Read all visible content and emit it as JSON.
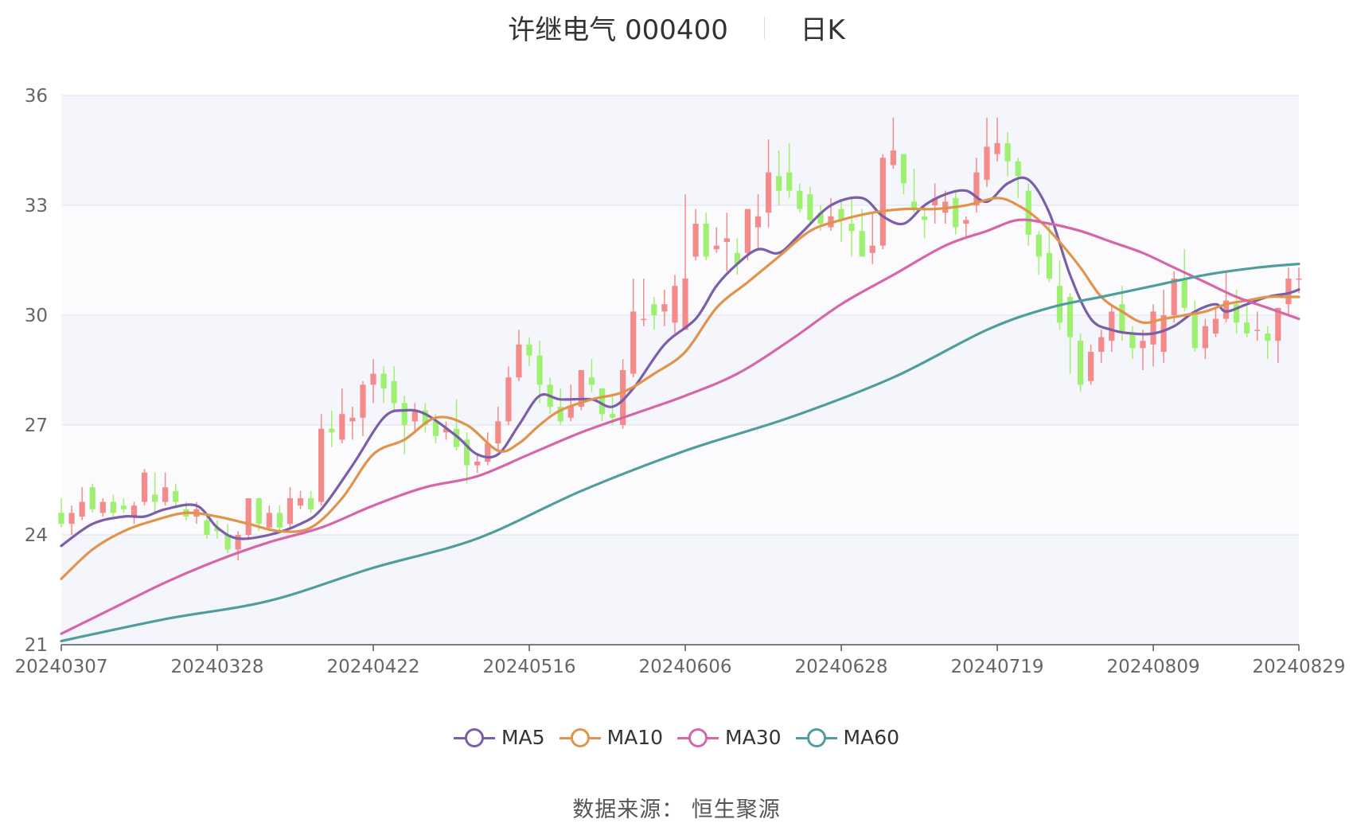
{
  "title": {
    "stock": "许继电气 000400",
    "period": "日K"
  },
  "source": "数据来源： 恒生聚源",
  "chart_data": {
    "type": "candlestick",
    "ylim": [
      21,
      36
    ],
    "yticks": [
      21,
      24,
      27,
      30,
      33,
      36
    ],
    "x_dates": [
      "20240307",
      "20240328",
      "20240422",
      "20240516",
      "20240606",
      "20240628",
      "20240719",
      "20240809",
      "20240829"
    ],
    "x_tick_index": [
      0,
      15,
      30,
      45,
      60,
      75,
      90,
      105,
      119
    ],
    "up_color": "#f48a8a",
    "down_color": "#9ef06f",
    "band_colors": [
      "#f5f6fb",
      "#fbfbfe"
    ],
    "candles": [
      [
        24.6,
        24.3,
        25.0,
        24.2
      ],
      [
        24.3,
        24.6,
        24.8,
        24.0
      ],
      [
        24.5,
        24.9,
        25.3,
        24.4
      ],
      [
        25.3,
        24.7,
        25.4,
        24.6
      ],
      [
        24.6,
        24.9,
        25.0,
        24.5
      ],
      [
        24.9,
        24.6,
        25.1,
        24.5
      ],
      [
        24.8,
        24.7,
        25.0,
        24.6
      ],
      [
        24.5,
        24.8,
        24.9,
        24.3
      ],
      [
        24.9,
        25.7,
        25.8,
        24.8
      ],
      [
        25.1,
        24.9,
        25.7,
        24.6
      ],
      [
        24.9,
        25.3,
        25.7,
        24.8
      ],
      [
        25.2,
        24.9,
        25.4,
        24.8
      ],
      [
        24.7,
        24.5,
        24.9,
        24.4
      ],
      [
        24.5,
        24.7,
        24.9,
        24.3
      ],
      [
        24.4,
        24.0,
        24.6,
        23.9
      ],
      [
        24.2,
        24.1,
        24.4,
        23.9
      ],
      [
        24.0,
        23.6,
        24.3,
        23.5
      ],
      [
        23.6,
        24.0,
        24.1,
        23.3
      ],
      [
        24.0,
        25.0,
        25.0,
        23.9
      ],
      [
        25.0,
        24.3,
        25.0,
        24.1
      ],
      [
        24.2,
        24.6,
        24.8,
        24.1
      ],
      [
        24.6,
        24.2,
        24.8,
        24.1
      ],
      [
        24.3,
        25.0,
        25.3,
        24.2
      ],
      [
        24.8,
        25.0,
        25.2,
        24.7
      ],
      [
        25.0,
        24.7,
        25.2,
        24.6
      ],
      [
        24.9,
        26.9,
        27.3,
        24.8
      ],
      [
        26.9,
        26.8,
        27.4,
        26.4
      ],
      [
        26.6,
        27.3,
        28.0,
        26.5
      ],
      [
        27.1,
        27.2,
        27.5,
        26.6
      ],
      [
        27.2,
        28.1,
        28.2,
        26.7
      ],
      [
        28.1,
        28.4,
        28.8,
        27.6
      ],
      [
        28.4,
        28.0,
        28.6,
        27.6
      ],
      [
        28.2,
        27.6,
        28.6,
        27.4
      ],
      [
        27.6,
        27.0,
        27.8,
        26.2
      ],
      [
        27.1,
        27.4,
        27.6,
        26.8
      ],
      [
        27.4,
        27.0,
        27.6,
        26.8
      ],
      [
        27.1,
        26.7,
        27.3,
        26.5
      ],
      [
        26.8,
        26.9,
        27.1,
        26.6
      ],
      [
        26.9,
        26.4,
        27.7,
        26.3
      ],
      [
        26.6,
        25.9,
        26.8,
        25.4
      ],
      [
        25.9,
        26.0,
        26.2,
        25.7
      ],
      [
        26.0,
        26.5,
        26.8,
        25.9
      ],
      [
        26.5,
        27.1,
        27.5,
        26.3
      ],
      [
        27.1,
        28.3,
        28.6,
        27.0
      ],
      [
        28.3,
        29.2,
        29.6,
        28.2
      ],
      [
        29.2,
        28.9,
        29.4,
        28.6
      ],
      [
        28.9,
        28.1,
        29.3,
        27.6
      ],
      [
        28.1,
        27.5,
        28.3,
        27.3
      ],
      [
        27.5,
        27.1,
        28.0,
        27.0
      ],
      [
        27.2,
        27.5,
        28.1,
        27.1
      ],
      [
        27.5,
        28.5,
        28.5,
        27.4
      ],
      [
        28.3,
        28.1,
        28.8,
        27.9
      ],
      [
        28.0,
        27.3,
        28.0,
        27.1
      ],
      [
        27.3,
        27.2,
        27.8,
        27.0
      ],
      [
        27.0,
        28.5,
        28.8,
        26.9
      ],
      [
        28.4,
        30.1,
        31.0,
        28.3
      ],
      [
        29.9,
        29.9,
        31.0,
        29.7
      ],
      [
        30.3,
        30.0,
        30.5,
        29.6
      ],
      [
        30.1,
        30.3,
        30.7,
        29.7
      ],
      [
        29.8,
        30.8,
        31.1,
        29.5
      ],
      [
        29.6,
        31.0,
        33.3,
        29.6
      ],
      [
        31.6,
        32.5,
        32.9,
        31.5
      ],
      [
        32.5,
        31.6,
        32.8,
        31.5
      ],
      [
        31.8,
        31.9,
        32.4,
        31.7
      ],
      [
        32.0,
        32.1,
        32.8,
        31.2
      ],
      [
        31.7,
        31.4,
        32.1,
        31.1
      ],
      [
        31.7,
        32.9,
        32.9,
        31.5
      ],
      [
        32.4,
        32.7,
        33.3,
        31.8
      ],
      [
        32.8,
        33.9,
        34.8,
        32.4
      ],
      [
        33.8,
        33.4,
        34.5,
        33.0
      ],
      [
        33.9,
        33.4,
        34.7,
        33.2
      ],
      [
        33.4,
        32.9,
        33.6,
        32.8
      ],
      [
        33.3,
        32.6,
        33.5,
        32.5
      ],
      [
        32.8,
        32.5,
        33.0,
        32.3
      ],
      [
        32.4,
        32.7,
        33.2,
        32.3
      ],
      [
        32.9,
        32.6,
        33.1,
        32.0
      ],
      [
        32.5,
        32.3,
        33.2,
        31.6
      ],
      [
        32.3,
        31.6,
        32.9,
        31.6
      ],
      [
        31.7,
        31.9,
        32.8,
        31.4
      ],
      [
        31.9,
        34.3,
        34.4,
        31.8
      ],
      [
        34.1,
        34.5,
        35.4,
        34.0
      ],
      [
        34.4,
        33.6,
        34.3,
        33.3
      ],
      [
        33.1,
        32.9,
        34.0,
        32.8
      ],
      [
        32.7,
        32.6,
        33.0,
        32.1
      ],
      [
        33.0,
        33.2,
        33.6,
        32.5
      ],
      [
        32.8,
        33.1,
        33.4,
        32.5
      ],
      [
        33.2,
        32.4,
        33.4,
        32.2
      ],
      [
        32.5,
        32.6,
        32.7,
        32.1
      ],
      [
        33.0,
        33.9,
        34.3,
        32.8
      ],
      [
        33.7,
        34.6,
        35.4,
        33.5
      ],
      [
        34.4,
        34.7,
        35.4,
        34.2
      ],
      [
        34.7,
        34.2,
        35.0,
        33.8
      ],
      [
        34.2,
        33.8,
        34.3,
        33.2
      ],
      [
        33.4,
        32.2,
        33.6,
        31.9
      ],
      [
        32.2,
        31.6,
        32.3,
        31.1
      ],
      [
        31.7,
        31.0,
        32.5,
        30.9
      ],
      [
        30.8,
        29.8,
        31.5,
        29.6
      ],
      [
        30.5,
        29.4,
        30.6,
        28.4
      ],
      [
        29.3,
        28.1,
        29.5,
        27.9
      ],
      [
        28.2,
        29.0,
        29.2,
        28.1
      ],
      [
        29.0,
        29.4,
        29.6,
        28.7
      ],
      [
        29.3,
        30.1,
        30.3,
        29.0
      ],
      [
        30.3,
        29.5,
        30.8,
        29.3
      ],
      [
        29.5,
        29.1,
        29.7,
        28.8
      ],
      [
        29.1,
        29.3,
        29.6,
        28.5
      ],
      [
        29.2,
        30.1,
        30.3,
        28.6
      ],
      [
        29.0,
        30.0,
        30.7,
        28.7
      ],
      [
        30.0,
        31.0,
        31.2,
        29.8
      ],
      [
        31.0,
        30.2,
        31.8,
        30.1
      ],
      [
        30.1,
        29.1,
        30.4,
        29.0
      ],
      [
        29.1,
        29.7,
        29.9,
        28.8
      ],
      [
        29.5,
        29.9,
        30.2,
        29.4
      ],
      [
        29.9,
        30.4,
        31.2,
        29.8
      ],
      [
        30.3,
        29.8,
        30.7,
        29.5
      ],
      [
        29.8,
        29.5,
        30.3,
        29.4
      ],
      [
        29.6,
        29.6,
        30.1,
        29.3
      ],
      [
        29.5,
        29.3,
        29.7,
        28.8
      ],
      [
        29.3,
        30.2,
        30.2,
        28.7
      ],
      [
        30.3,
        31.0,
        31.3,
        30.0
      ],
      [
        31.0,
        31.0,
        31.3,
        30.6
      ]
    ],
    "series": [
      {
        "name": "MA5",
        "color": "#7b5ea9"
      },
      {
        "name": "MA10",
        "color": "#e0944b"
      },
      {
        "name": "MA30",
        "color": "#d766a9"
      },
      {
        "name": "MA60",
        "color": "#4f9e9d"
      }
    ],
    "ma": {
      "MA5": [
        [
          0,
          23.7
        ],
        [
          3,
          24.3
        ],
        [
          6,
          24.5
        ],
        [
          8,
          24.5
        ],
        [
          10,
          24.7
        ],
        [
          13,
          24.8
        ],
        [
          15,
          24.2
        ],
        [
          17,
          23.9
        ],
        [
          20,
          24.0
        ],
        [
          23,
          24.3
        ],
        [
          25,
          24.7
        ],
        [
          28,
          25.9
        ],
        [
          31,
          27.2
        ],
        [
          33,
          27.4
        ],
        [
          35,
          27.3
        ],
        [
          38,
          26.7
        ],
        [
          40,
          26.2
        ],
        [
          42,
          26.2
        ],
        [
          44,
          27.0
        ],
        [
          46,
          27.8
        ],
        [
          48,
          27.7
        ],
        [
          51,
          27.7
        ],
        [
          53,
          27.5
        ],
        [
          55,
          28.0
        ],
        [
          58,
          29.2
        ],
        [
          61,
          29.9
        ],
        [
          63,
          30.8
        ],
        [
          65,
          31.4
        ],
        [
          67,
          31.8
        ],
        [
          69,
          31.7
        ],
        [
          71,
          32.2
        ],
        [
          74,
          33.0
        ],
        [
          77,
          33.2
        ],
        [
          79,
          32.7
        ],
        [
          81,
          32.5
        ],
        [
          83,
          33.0
        ],
        [
          85,
          33.3
        ],
        [
          87,
          33.4
        ],
        [
          89,
          33.1
        ],
        [
          91,
          33.6
        ],
        [
          93,
          33.7
        ],
        [
          95,
          32.8
        ],
        [
          97,
          31.1
        ],
        [
          99,
          29.9
        ],
        [
          101,
          29.6
        ],
        [
          103,
          29.5
        ],
        [
          105,
          29.5
        ],
        [
          107,
          29.7
        ],
        [
          109,
          30.1
        ],
        [
          111,
          30.3
        ],
        [
          112,
          30.1
        ],
        [
          114,
          30.3
        ],
        [
          116,
          30.5
        ],
        [
          118,
          30.6
        ],
        [
          119,
          30.7
        ]
      ],
      "MA10": [
        [
          0,
          22.8
        ],
        [
          3,
          23.6
        ],
        [
          6,
          24.1
        ],
        [
          9,
          24.4
        ],
        [
          12,
          24.6
        ],
        [
          15,
          24.5
        ],
        [
          18,
          24.3
        ],
        [
          21,
          24.1
        ],
        [
          24,
          24.2
        ],
        [
          27,
          25.0
        ],
        [
          30,
          26.2
        ],
        [
          33,
          26.6
        ],
        [
          36,
          27.2
        ],
        [
          39,
          27.0
        ],
        [
          42,
          26.3
        ],
        [
          44,
          26.5
        ],
        [
          46,
          27.0
        ],
        [
          48,
          27.4
        ],
        [
          51,
          27.7
        ],
        [
          54,
          27.9
        ],
        [
          57,
          28.4
        ],
        [
          60,
          29.0
        ],
        [
          63,
          30.2
        ],
        [
          66,
          30.9
        ],
        [
          69,
          31.6
        ],
        [
          72,
          32.3
        ],
        [
          75,
          32.6
        ],
        [
          78,
          32.8
        ],
        [
          81,
          32.9
        ],
        [
          84,
          32.9
        ],
        [
          87,
          33.0
        ],
        [
          90,
          33.2
        ],
        [
          92,
          33.0
        ],
        [
          94,
          32.6
        ],
        [
          96,
          32.0
        ],
        [
          98,
          31.3
        ],
        [
          100,
          30.5
        ],
        [
          102,
          30.1
        ],
        [
          104,
          29.8
        ],
        [
          106,
          29.9
        ],
        [
          108,
          30.0
        ],
        [
          110,
          30.1
        ],
        [
          112,
          30.3
        ],
        [
          114,
          30.4
        ],
        [
          116,
          30.5
        ],
        [
          118,
          30.5
        ],
        [
          119,
          30.5
        ]
      ],
      "MA30": [
        [
          0,
          21.3
        ],
        [
          5,
          22.0
        ],
        [
          10,
          22.7
        ],
        [
          15,
          23.3
        ],
        [
          20,
          23.8
        ],
        [
          25,
          24.2
        ],
        [
          30,
          24.8
        ],
        [
          35,
          25.3
        ],
        [
          40,
          25.6
        ],
        [
          45,
          26.2
        ],
        [
          50,
          26.8
        ],
        [
          55,
          27.3
        ],
        [
          60,
          27.8
        ],
        [
          65,
          28.4
        ],
        [
          70,
          29.3
        ],
        [
          75,
          30.3
        ],
        [
          80,
          31.1
        ],
        [
          85,
          31.9
        ],
        [
          89,
          32.3
        ],
        [
          92,
          32.6
        ],
        [
          95,
          32.5
        ],
        [
          98,
          32.3
        ],
        [
          101,
          32.0
        ],
        [
          104,
          31.7
        ],
        [
          107,
          31.3
        ],
        [
          110,
          30.9
        ],
        [
          113,
          30.5
        ],
        [
          116,
          30.2
        ],
        [
          119,
          29.9
        ]
      ],
      "MA60": [
        [
          0,
          21.1
        ],
        [
          10,
          21.7
        ],
        [
          20,
          22.2
        ],
        [
          30,
          23.1
        ],
        [
          40,
          23.9
        ],
        [
          50,
          25.2
        ],
        [
          60,
          26.3
        ],
        [
          70,
          27.2
        ],
        [
          80,
          28.3
        ],
        [
          89,
          29.6
        ],
        [
          95,
          30.2
        ],
        [
          100,
          30.5
        ],
        [
          105,
          30.8
        ],
        [
          110,
          31.1
        ],
        [
          115,
          31.3
        ],
        [
          119,
          31.4
        ]
      ]
    }
  }
}
